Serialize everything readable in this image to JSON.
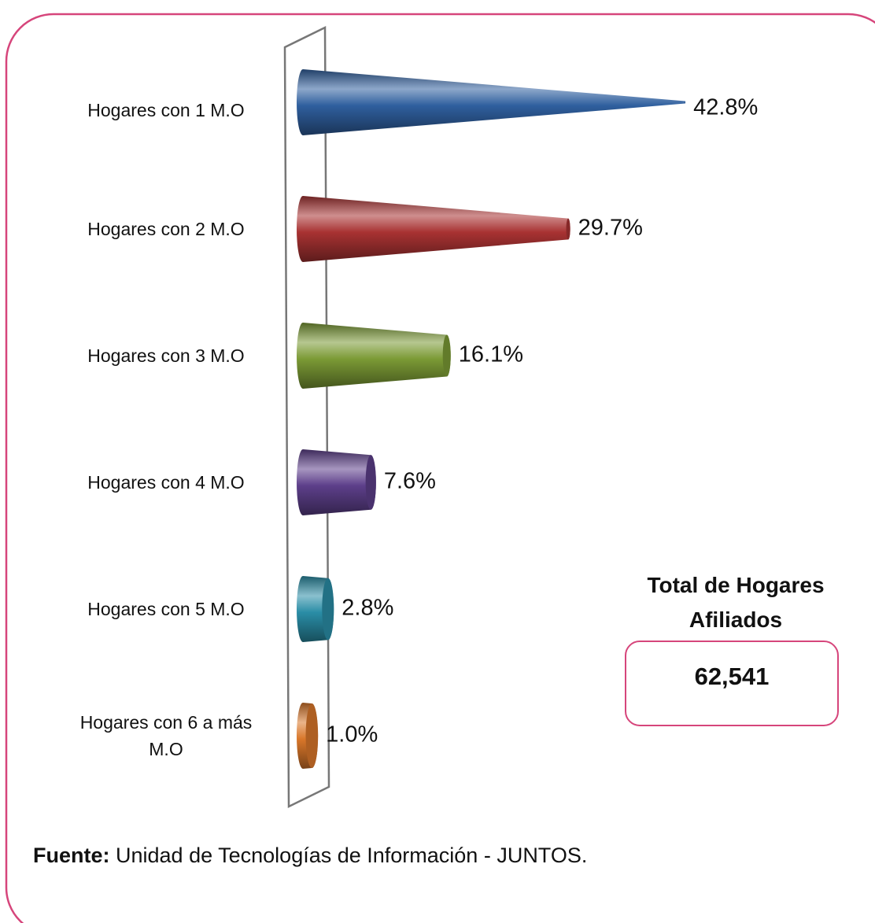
{
  "chart_data": {
    "type": "bar",
    "orientation": "horizontal",
    "categories": [
      "Hogares con 1 M.O",
      "Hogares con 2 M.O",
      "Hogares con 3 M.O",
      "Hogares con 4 M.O",
      "Hogares con 5 M.O",
      "Hogares con 6 a más M.O"
    ],
    "values": [
      42.8,
      29.7,
      16.1,
      7.6,
      2.8,
      1.0
    ],
    "value_labels": [
      "42.8%",
      "29.7%",
      "16.1%",
      "7.6%",
      "2.8%",
      "1.0%"
    ],
    "colors": [
      "#2f5f9e",
      "#a83232",
      "#7b9a35",
      "#5d3f8a",
      "#2a8da6",
      "#d9772a"
    ]
  },
  "annotation": {
    "title": "Total de Hogares Afiliados",
    "value": "62,541"
  },
  "source": {
    "label": "Fuente:",
    "text": "Unidad de Tecnologías de Información - JUNTOS."
  }
}
